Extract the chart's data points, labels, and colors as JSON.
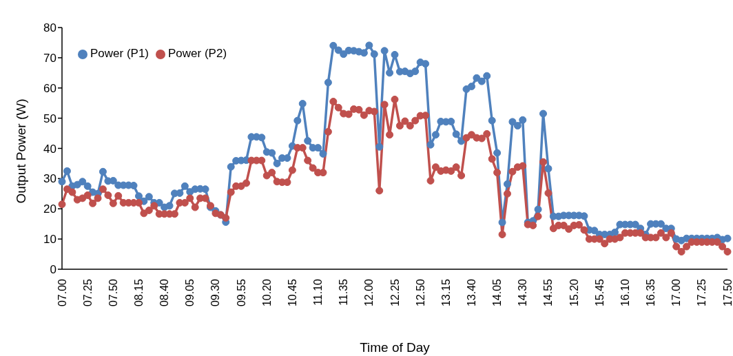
{
  "chart_data": {
    "type": "line",
    "xlabel": "Time of Day",
    "ylabel": "Output Power (W)",
    "categories": [
      "07.00",
      null,
      null,
      null,
      null,
      "07.25",
      null,
      null,
      null,
      null,
      "07.50",
      null,
      null,
      null,
      null,
      "08.15",
      null,
      null,
      null,
      null,
      "08.40",
      null,
      null,
      null,
      null,
      "09.05",
      null,
      null,
      null,
      null,
      "09.30",
      null,
      null,
      null,
      null,
      "09.55",
      null,
      null,
      null,
      null,
      "10.20",
      null,
      null,
      null,
      null,
      "10.45",
      null,
      null,
      null,
      null,
      "11.10",
      null,
      null,
      null,
      null,
      "11.35",
      null,
      null,
      null,
      null,
      "12.00",
      null,
      null,
      null,
      null,
      "12.25",
      null,
      null,
      null,
      null,
      "12.50",
      null,
      null,
      null,
      null,
      "13.15",
      null,
      null,
      null,
      null,
      "13.40",
      null,
      null,
      null,
      null,
      "14.05",
      null,
      null,
      null,
      null,
      "14.30",
      null,
      null,
      null,
      null,
      "14.55",
      null,
      null,
      null,
      null,
      "15.20",
      null,
      null,
      null,
      null,
      "15.45",
      null,
      null,
      null,
      null,
      "16.10",
      null,
      null,
      null,
      null,
      "16.35",
      null,
      null,
      null,
      null,
      "17.00",
      null,
      null,
      null,
      null,
      "17.25",
      null,
      null,
      null,
      null,
      "17.50"
    ],
    "series": [
      {
        "name": "Power (P1)",
        "color": "#4f81bd",
        "values": [
          29,
          32.5,
          27.5,
          28,
          29,
          27.5,
          25.5,
          25,
          32.3,
          29.2,
          29.3,
          27.8,
          27.8,
          27.8,
          27.7,
          24.2,
          22.5,
          24,
          22,
          22,
          20.5,
          21,
          25.1,
          25.2,
          27.5,
          25.6,
          26.5,
          26.6,
          26.5,
          20.5,
          19.3,
          18,
          15.6,
          33.9,
          35.9,
          36,
          36.1,
          43.8,
          43.8,
          43.6,
          38.8,
          38.5,
          35,
          36.8,
          36.8,
          40.8,
          49.2,
          54.8,
          42.5,
          40.2,
          40.2,
          38.2,
          61.8,
          74,
          72.5,
          71.2,
          72.4,
          72.3,
          72,
          71.6,
          74.1,
          71.2,
          40.5,
          72.3,
          65,
          71,
          65.4,
          65.5,
          64.8,
          65.5,
          68.5,
          68,
          41.2,
          44.5,
          48.9,
          48.8,
          48.9,
          44.7,
          42.4,
          59.6,
          60.5,
          63.3,
          62.2,
          64,
          49.2,
          38.5,
          15.5,
          28.2,
          48.8,
          47.5,
          49.4,
          15.5,
          16,
          19.8,
          51.5,
          33.3,
          17.5,
          17.5,
          17.8,
          17.8,
          17.8,
          17.8,
          17.6,
          13,
          12.8,
          11.5,
          11.5,
          11.5,
          12.2,
          14.8,
          14.8,
          14.8,
          14.8,
          13.5,
          11.5,
          15,
          15,
          15,
          13.5,
          13.5,
          10,
          9.5,
          10.2,
          10.2,
          10.2,
          10.2,
          10.2,
          10.2,
          10.5,
          9.8,
          10.2
        ]
      },
      {
        "name": "Power (P2)",
        "color": "#c0504d",
        "values": [
          21.5,
          26.5,
          25.5,
          23,
          23.5,
          24.5,
          21.8,
          23.5,
          26.5,
          24.5,
          21.8,
          24.3,
          22,
          22,
          22,
          22,
          18.5,
          19.5,
          21,
          18.3,
          18.3,
          18.3,
          18.3,
          22,
          22,
          23.5,
          20.5,
          23.5,
          23.5,
          21,
          18.5,
          18,
          17,
          25.5,
          27.5,
          27.5,
          28.5,
          36,
          36,
          36,
          31,
          32,
          29,
          28.8,
          28.8,
          32.8,
          40.2,
          40.2,
          36,
          33.5,
          32,
          32,
          45.5,
          55.5,
          53.5,
          51.5,
          51.3,
          53,
          52.8,
          51,
          52.5,
          52.2,
          26,
          54.5,
          44.5,
          56.2,
          47.5,
          49,
          47.5,
          49.2,
          50.8,
          50.9,
          29.3,
          33.8,
          32.5,
          32.8,
          32.5,
          33.8,
          31,
          43.5,
          44.5,
          43.5,
          43.3,
          44.8,
          36.5,
          32,
          11.5,
          25,
          32.3,
          33.8,
          34.2,
          14.8,
          14.5,
          17.5,
          35.5,
          25.2,
          13.5,
          14.5,
          14.5,
          13.3,
          14.5,
          14.7,
          13,
          10,
          10,
          10,
          8.5,
          10,
          10,
          10.5,
          12,
          12,
          12,
          12,
          10.5,
          10.5,
          10.5,
          12,
          10.5,
          12,
          7.5,
          5.8,
          7.5,
          9,
          9,
          9,
          9,
          9,
          9,
          7.5,
          5.8
        ]
      }
    ],
    "ylim": [
      0,
      80
    ],
    "yticks": [
      0,
      10,
      20,
      30,
      40,
      50,
      60,
      70,
      80
    ],
    "grid": false,
    "legend": "top left",
    "marker": "circle",
    "line_style": "solid"
  }
}
